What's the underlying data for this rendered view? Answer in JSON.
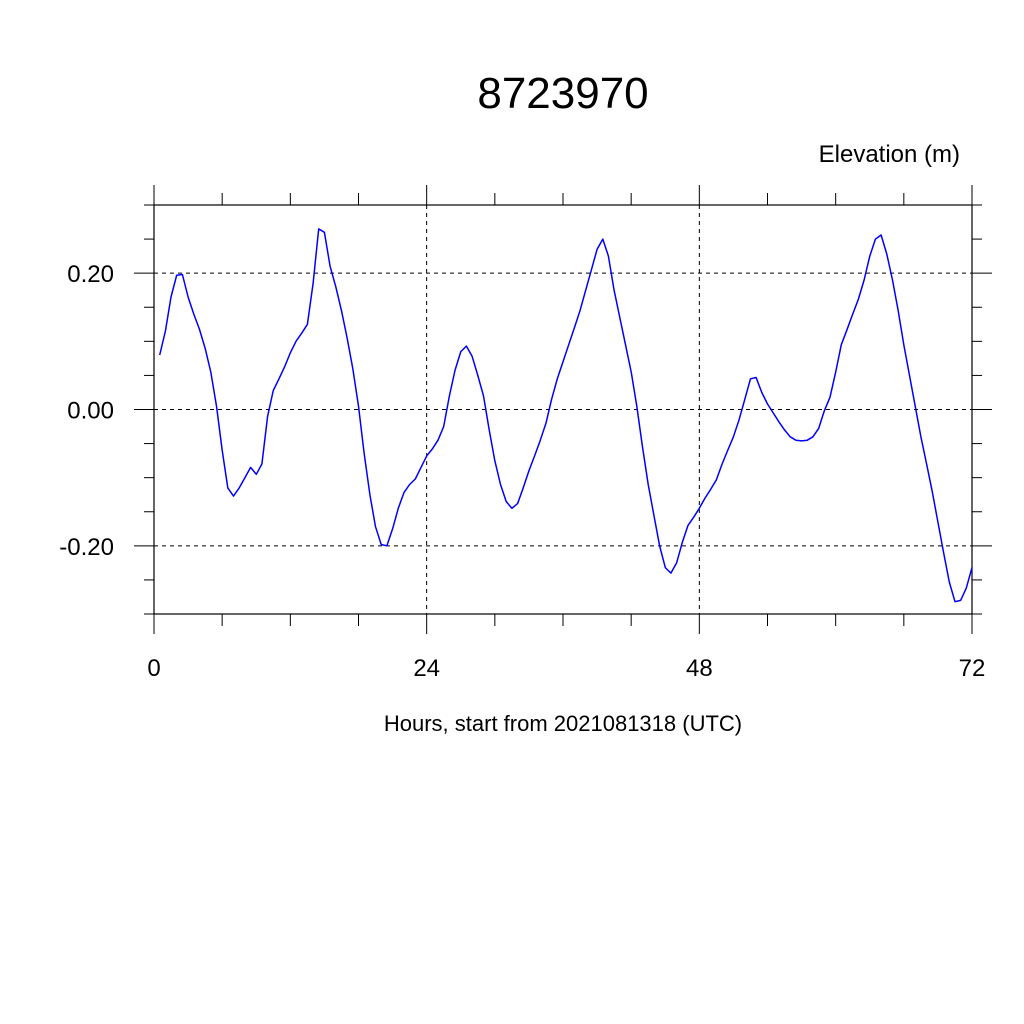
{
  "chart_data": {
    "type": "line",
    "title": "8723970",
    "right_label": "Elevation (m)",
    "xlabel": "Hours, start from 2021081318 (UTC)",
    "ylabel": "",
    "xlim": [
      0,
      72
    ],
    "ylim": [
      -0.3,
      0.3
    ],
    "x_ticks": [
      0,
      24,
      48,
      72
    ],
    "x_tick_labels": [
      "0",
      "24",
      "48",
      "72"
    ],
    "y_ticks": [
      -0.2,
      0.0,
      0.2
    ],
    "y_tick_labels": [
      "-0.20",
      "0.00",
      "0.20"
    ],
    "grid": "dashed",
    "line_color": "#0000ff",
    "series": [
      {
        "x": [
          0.5,
          1,
          1.5,
          2,
          2.5,
          3,
          3.5,
          4,
          4.5,
          5,
          5.5,
          6,
          6.5,
          7,
          7.5,
          8,
          8.5,
          9,
          9.5,
          10,
          10.5,
          11,
          11.5,
          12,
          12.5,
          13,
          13.5,
          14,
          14.5,
          15,
          15.5,
          16,
          16.5,
          17,
          17.5,
          18,
          18.5,
          19,
          19.5,
          20,
          20.5,
          21,
          21.5,
          22,
          22.5,
          23,
          23.5,
          24,
          24.5,
          25,
          25.5,
          26,
          26.5,
          27,
          27.5,
          28,
          28.5,
          29,
          29.5,
          30,
          30.5,
          31,
          31.5,
          32,
          32.5,
          33,
          33.5,
          34,
          34.5,
          35,
          35.5,
          36,
          36.5,
          37,
          37.5,
          38,
          38.5,
          39,
          39.5,
          40,
          40.5,
          41,
          41.5,
          42,
          42.5,
          43,
          43.5,
          44,
          44.5,
          45,
          45.5,
          46,
          46.5,
          47,
          47.5,
          48,
          48.5,
          49,
          49.5,
          50,
          50.5,
          51,
          51.5,
          52,
          52.5,
          53,
          53.5,
          54,
          54.5,
          55,
          55.5,
          56,
          56.5,
          57,
          57.5,
          58,
          58.5,
          59,
          59.5,
          60,
          60.5,
          61,
          61.5,
          62,
          62.5,
          63,
          63.5,
          64,
          64.5,
          65,
          65.5,
          66,
          66.5,
          67,
          67.5,
          68,
          68.5,
          69,
          69.5,
          70,
          70.5,
          71,
          71.5,
          72
        ],
        "values": [
          0.08,
          0.115,
          0.165,
          0.197,
          0.198,
          0.165,
          0.14,
          0.118,
          0.09,
          0.055,
          0.005,
          -0.06,
          -0.115,
          -0.127,
          -0.115,
          -0.1,
          -0.085,
          -0.095,
          -0.08,
          -0.01,
          0.028,
          0.045,
          0.063,
          0.083,
          0.1,
          0.112,
          0.125,
          0.185,
          0.265,
          0.26,
          0.21,
          0.18,
          0.145,
          0.105,
          0.06,
          0.005,
          -0.065,
          -0.125,
          -0.172,
          -0.198,
          -0.2,
          -0.175,
          -0.145,
          -0.122,
          -0.11,
          -0.102,
          -0.085,
          -0.068,
          -0.058,
          -0.045,
          -0.025,
          0.02,
          0.058,
          0.085,
          0.093,
          0.078,
          0.05,
          0.02,
          -0.03,
          -0.075,
          -0.11,
          -0.135,
          -0.145,
          -0.138,
          -0.115,
          -0.09,
          -0.068,
          -0.045,
          -0.02,
          0.015,
          0.045,
          0.07,
          0.095,
          0.12,
          0.145,
          0.175,
          0.205,
          0.235,
          0.25,
          0.225,
          0.175,
          0.135,
          0.095,
          0.055,
          0.005,
          -0.055,
          -0.11,
          -0.155,
          -0.2,
          -0.232,
          -0.24,
          -0.225,
          -0.195,
          -0.17,
          -0.158,
          -0.145,
          -0.13,
          -0.117,
          -0.103,
          -0.08,
          -0.06,
          -0.04,
          -0.015,
          0.015,
          0.045,
          0.047,
          0.025,
          0.008,
          -0.005,
          -0.018,
          -0.03,
          -0.04,
          -0.045,
          -0.046,
          -0.045,
          -0.04,
          -0.028,
          -0.002,
          0.018,
          0.055,
          0.095,
          0.117,
          0.14,
          0.162,
          0.19,
          0.225,
          0.25,
          0.256,
          0.228,
          0.19,
          0.145,
          0.095,
          0.05,
          0.005,
          -0.04,
          -0.08,
          -0.12,
          -0.165,
          -0.21,
          -0.253,
          -0.282,
          -0.28,
          -0.262,
          -0.232
        ]
      }
    ]
  }
}
